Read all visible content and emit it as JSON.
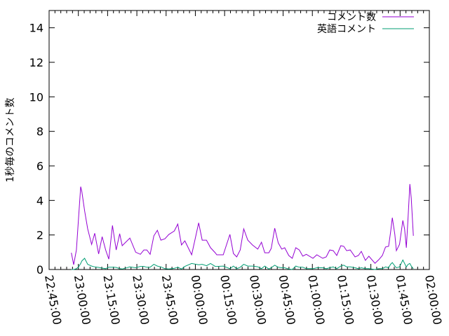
{
  "chart_data": {
    "type": "line",
    "title": "",
    "xlabel": "",
    "ylabel": "1秒毎のコメント数",
    "xlim": [
      "22:45:00",
      "02:00:00"
    ],
    "ylim": [
      0,
      15
    ],
    "x_ticks": [
      "22:45:00",
      "23:00:00",
      "23:15:00",
      "23:30:00",
      "23:45:00",
      "00:00:00",
      "00:15:00",
      "00:30:00",
      "00:45:00",
      "01:00:00",
      "01:15:00",
      "01:30:00",
      "01:45:00",
      "02:00:00"
    ],
    "y_ticks": [
      "0",
      "2",
      "4",
      "6",
      "8",
      "10",
      "12",
      "14"
    ],
    "grid": false,
    "legend_position": "top-right",
    "x": [
      "22:56:24",
      "22:57:36",
      "22:59:00",
      "23:00:06",
      "23:01:12",
      "23:01:48",
      "23:03:12",
      "23:04:48",
      "23:06:48",
      "23:08:24",
      "23:10:24",
      "23:12:12",
      "23:14:00",
      "23:15:36",
      "23:17:30",
      "23:19:24",
      "23:21:12",
      "23:22:30",
      "23:26:24",
      "23:29:24",
      "23:31:48",
      "23:33:36",
      "23:35:06",
      "23:36:48",
      "23:38:42",
      "23:40:30",
      "23:42:18",
      "23:44:24",
      "23:46:24",
      "23:49:12",
      "23:51:00",
      "23:52:54",
      "23:54:36",
      "23:58:06",
      "00:01:42",
      "00:03:30",
      "00:05:42",
      "00:07:48",
      "00:10:12",
      "00:11:00",
      "00:14:18",
      "00:17:42",
      "00:19:30",
      "00:21:12",
      "00:23:00",
      "00:24:48",
      "00:26:54",
      "00:29:18",
      "00:32:00",
      "00:33:54",
      "00:35:36",
      "00:37:42",
      "00:38:54",
      "00:40:42",
      "00:42:30",
      "00:44:18",
      "00:45:48",
      "00:47:54",
      "00:49:42",
      "00:51:30",
      "00:53:18",
      "00:55:06",
      "00:56:54",
      "01:00:18",
      "01:02:18",
      "01:05:18",
      "01:07:06",
      "01:08:54",
      "01:10:42",
      "01:12:30",
      "01:14:36",
      "01:16:06",
      "01:17:36",
      "01:19:24",
      "01:21:54",
      "01:23:36",
      "01:25:06",
      "01:27:12",
      "01:29:00",
      "01:32:06",
      "01:34:06",
      "01:35:54",
      "01:37:30",
      "01:39:06",
      "01:40:06",
      "01:41:00",
      "01:42:18",
      "01:43:06",
      "01:44:42",
      "01:46:24",
      "01:47:18",
      "01:48:12",
      "01:49:06",
      "01:50:00",
      "01:50:42",
      "01:51:48"
    ],
    "series": [
      {
        "name": "コメント数",
        "color": "#9400d3",
        "values": [
          0.97,
          0.28,
          1.13,
          3.0,
          4.8,
          4.5,
          3.4,
          2.35,
          1.45,
          2.1,
          0.9,
          1.9,
          1.13,
          0.6,
          2.55,
          1.13,
          2.07,
          1.38,
          1.82,
          1.0,
          0.88,
          1.13,
          1.13,
          0.88,
          1.95,
          2.27,
          1.7,
          1.78,
          2.03,
          2.23,
          2.63,
          1.42,
          1.66,
          0.85,
          2.7,
          1.7,
          1.7,
          1.26,
          0.97,
          0.85,
          0.85,
          2.03,
          0.93,
          0.73,
          1.13,
          2.35,
          1.7,
          1.42,
          1.18,
          1.58,
          0.97,
          0.97,
          1.22,
          2.39,
          1.54,
          1.18,
          1.26,
          0.81,
          0.65,
          1.26,
          1.13,
          0.77,
          0.88,
          0.65,
          0.85,
          0.65,
          0.73,
          1.13,
          1.09,
          0.81,
          1.38,
          1.34,
          1.09,
          1.13,
          0.73,
          0.81,
          1.05,
          0.53,
          0.77,
          0.36,
          0.57,
          0.81,
          1.3,
          1.34,
          2.15,
          3.0,
          2.03,
          1.09,
          1.46,
          2.84,
          2.35,
          1.26,
          3.04,
          4.95,
          4.13,
          1.95
        ]
      },
      {
        "name": "英語コメント",
        "color": "#009e73",
        "values": [
          0,
          0,
          0.05,
          0.15,
          0.35,
          0.5,
          0.65,
          0.3,
          0.2,
          0.15,
          0.12,
          0.08,
          0.05,
          0.13,
          0.13,
          0.12,
          0.05,
          0.03,
          0.15,
          0.1,
          0.18,
          0.18,
          0.13,
          0.13,
          0.3,
          0.2,
          0.15,
          0.05,
          0.03,
          0.07,
          0.13,
          0.03,
          0.18,
          0.35,
          0.27,
          0.3,
          0.22,
          0.35,
          0.18,
          0.18,
          0.2,
          0.05,
          0.2,
          0.05,
          0.13,
          0.3,
          0.2,
          0.2,
          0.16,
          0.05,
          0.2,
          0.03,
          0.1,
          0.25,
          0.13,
          0.1,
          0.1,
          0.03,
          0.0,
          0.2,
          0.13,
          0.13,
          0.05,
          0.05,
          0.1,
          0.1,
          0.05,
          0.1,
          0.15,
          0.05,
          0.2,
          0.25,
          0.15,
          0.15,
          0.1,
          0.05,
          0.1,
          0.05,
          0.05,
          0.0,
          0.05,
          0.05,
          0.15,
          0.1,
          0.3,
          0.4,
          0.2,
          0.1,
          0.15,
          0.55,
          0.35,
          0.15,
          0.3,
          0.35,
          0.2,
          0.05
        ]
      }
    ]
  }
}
